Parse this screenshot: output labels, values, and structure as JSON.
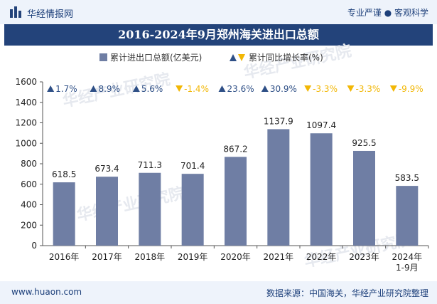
{
  "header": {
    "site_name": "华经情报网",
    "tagline": "专业严谨 ● 客观科学"
  },
  "title": "2016-2024年9月郑州海关进出口总额",
  "footer": {
    "url": "www.huaon.com",
    "source": "数据来源：中国海关，华经产业研究院整理"
  },
  "colors": {
    "bar": "#6f7ea4",
    "growth_positive": "#2e4f86",
    "growth_negative": "#f2b705",
    "header_bg": "#23437a"
  },
  "chart_data": {
    "type": "bar",
    "categories": [
      "2016年",
      "2017年",
      "2018年",
      "2019年",
      "2020年",
      "2021年",
      "2022年",
      "2023年",
      "2024年\n1-9月"
    ],
    "series": [
      {
        "name": "累计进出口总额(亿美元)",
        "values": [
          618.5,
          673.4,
          711.3,
          701.4,
          867.2,
          1137.9,
          1097.4,
          925.5,
          583.5
        ],
        "labels": [
          "618.5",
          "673.4",
          "711.3",
          "701.4",
          "867.2",
          "1137.9",
          "1097.4",
          "925.5",
          "583.5"
        ]
      },
      {
        "name": "累计同比增长率(%)",
        "values": [
          1.7,
          8.9,
          5.6,
          -1.4,
          23.6,
          30.9,
          -3.3,
          -3.3,
          -9.9
        ],
        "labels": [
          "1.7%",
          "8.9%",
          "5.6%",
          "-1.4%",
          "23.6%",
          "30.9%",
          "-3.3%",
          "-3.3%",
          "-9.9%"
        ]
      }
    ],
    "ylim": [
      0,
      1600
    ],
    "yticks": [
      0,
      200,
      400,
      600,
      800,
      1000,
      1200,
      1400,
      1600
    ],
    "legend_position": "top-center",
    "grid": false
  }
}
